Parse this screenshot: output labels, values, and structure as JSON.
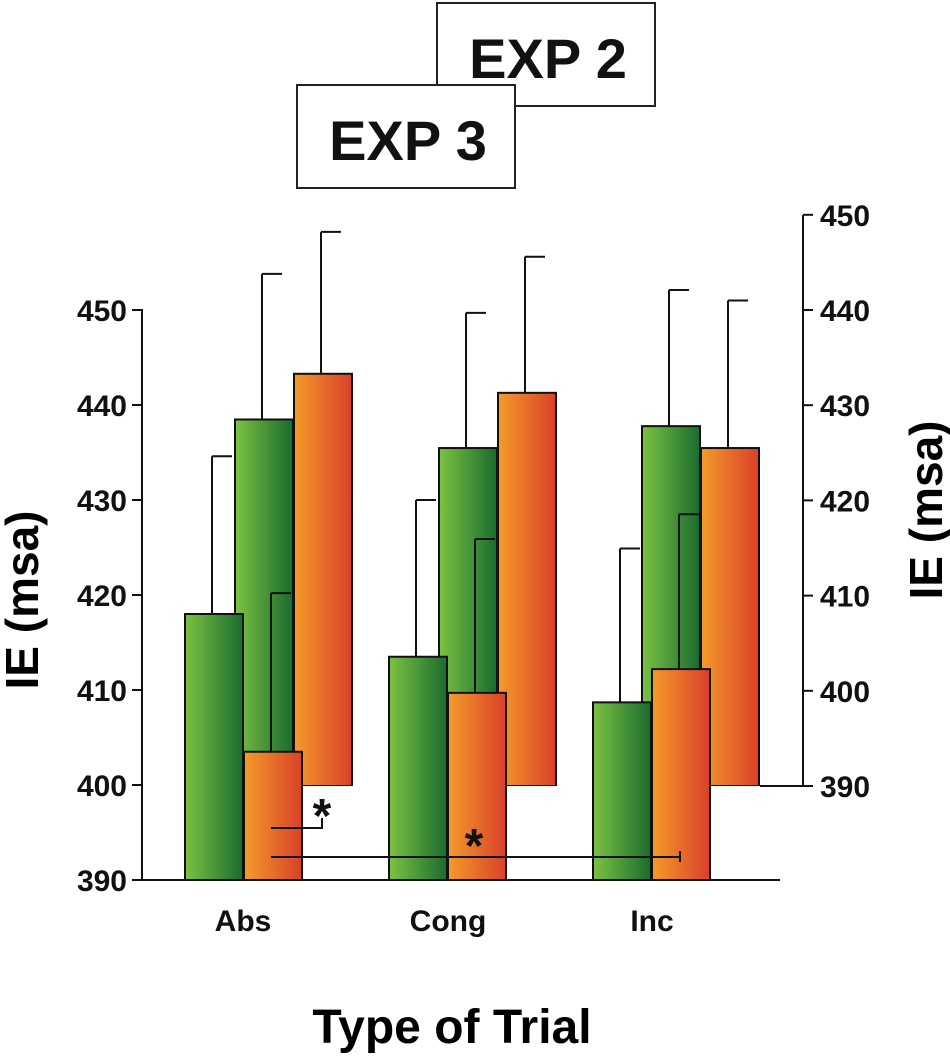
{
  "chart_data": {
    "type": "bar",
    "categories": [
      "Abs",
      "Cong",
      "Inc"
    ],
    "xlabel": "Type of Trial",
    "panels": [
      {
        "label": "EXP 3",
        "ylabel": "IE (msa)",
        "ylim": [
          390,
          450
        ],
        "yticks": [
          "390",
          "400",
          "410",
          "420",
          "430",
          "440",
          "450"
        ],
        "series": [
          {
            "values": [
              418,
              413.5,
              408.7
            ],
            "error": [
              16.6,
              16.5,
              16.2
            ],
            "gradient": [
              "#7cc242",
              "#1a6b2f"
            ]
          },
          {
            "values": [
              403.5,
              409.7,
              412.2
            ],
            "error": [
              16.7,
              16.2,
              16.3
            ],
            "gradient": [
              "#f49b2a",
              "#d9402a"
            ]
          }
        ],
        "significance": [
          {
            "from": "Abs",
            "to": "Abs",
            "label": "*"
          },
          {
            "from": "Abs",
            "to": "Inc",
            "label": "*"
          }
        ]
      },
      {
        "label": "EXP 2",
        "ylabel": "IE (msa)",
        "ylim": [
          390,
          450
        ],
        "yticks": [
          "390",
          "400",
          "410",
          "420",
          "430",
          "440",
          "450"
        ],
        "series": [
          {
            "values": [
              428.5,
              425.5,
              427.8
            ],
            "error": [
              15.3,
              14.2,
              14.3
            ],
            "gradient": [
              "#7cc242",
              "#1a6b2f"
            ]
          },
          {
            "values": [
              433.3,
              431.3,
              425.5
            ],
            "error": [
              14.9,
              14.3,
              15.5
            ],
            "gradient": [
              "#f49b2a",
              "#d9402a"
            ]
          }
        ]
      }
    ]
  }
}
